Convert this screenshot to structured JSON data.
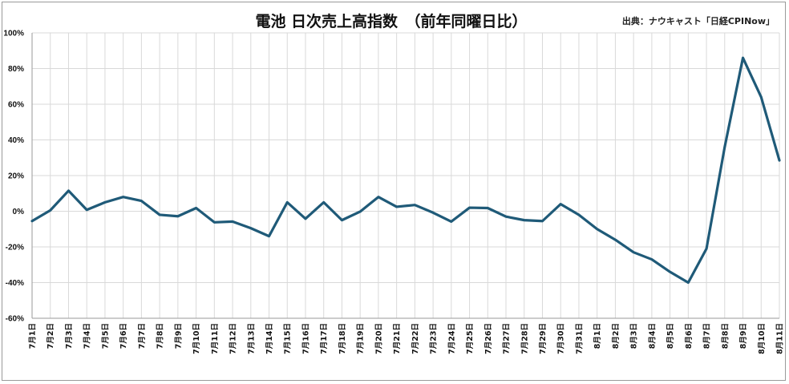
{
  "chart_data": {
    "type": "line",
    "title": "電池 日次売上高指数　（前年同曜日比）",
    "source": "出典：ナウキャスト「日経CPINow」",
    "xlabel": "",
    "ylabel": "",
    "ylim": [
      -60,
      100
    ],
    "ytick_values": [
      -60,
      -40,
      -20,
      0,
      20,
      40,
      60,
      80,
      100
    ],
    "ytick_labels": [
      "-60%",
      "-40%",
      "-20%",
      "0%",
      "20%",
      "40%",
      "60%",
      "80%",
      "100%"
    ],
    "grid": true,
    "legend": "none",
    "line_color": "#1f5a78",
    "categories": [
      "7月1日",
      "7月2日",
      "7月3日",
      "7月4日",
      "7月5日",
      "7月6日",
      "7月7日",
      "7月8日",
      "7月9日",
      "7月10日",
      "7月11日",
      "7月12日",
      "7月13日",
      "7月14日",
      "7月15日",
      "7月16日",
      "7月17日",
      "7月18日",
      "7月19日",
      "7月20日",
      "7月21日",
      "7月22日",
      "7月23日",
      "7月24日",
      "7月25日",
      "7月26日",
      "7月27日",
      "7月28日",
      "7月29日",
      "7月30日",
      "7月31日",
      "8月1日",
      "8月2日",
      "8月3日",
      "8月4日",
      "8月5日",
      "8月6日",
      "8月7日",
      "8月8日",
      "8月9日",
      "8月10日",
      "8月11日"
    ],
    "series": [
      {
        "values": [
          -5.5,
          0.5,
          11.5,
          0.8,
          5.0,
          8.0,
          5.8,
          -2.0,
          -2.8,
          1.8,
          -6.2,
          -5.8,
          -9.5,
          -14.0,
          5.0,
          -4.2,
          5.0,
          -5.0,
          -0.2,
          8.0,
          2.5,
          3.5,
          -0.8,
          -5.8,
          2.0,
          1.8,
          -3.0,
          -5.0,
          -5.5,
          4.0,
          -2.0,
          -10.0,
          -16.0,
          -23.0,
          -27.0,
          -34.0,
          -40.0,
          -21.0,
          36.0,
          86.0,
          64.0,
          28.5
        ]
      }
    ]
  }
}
